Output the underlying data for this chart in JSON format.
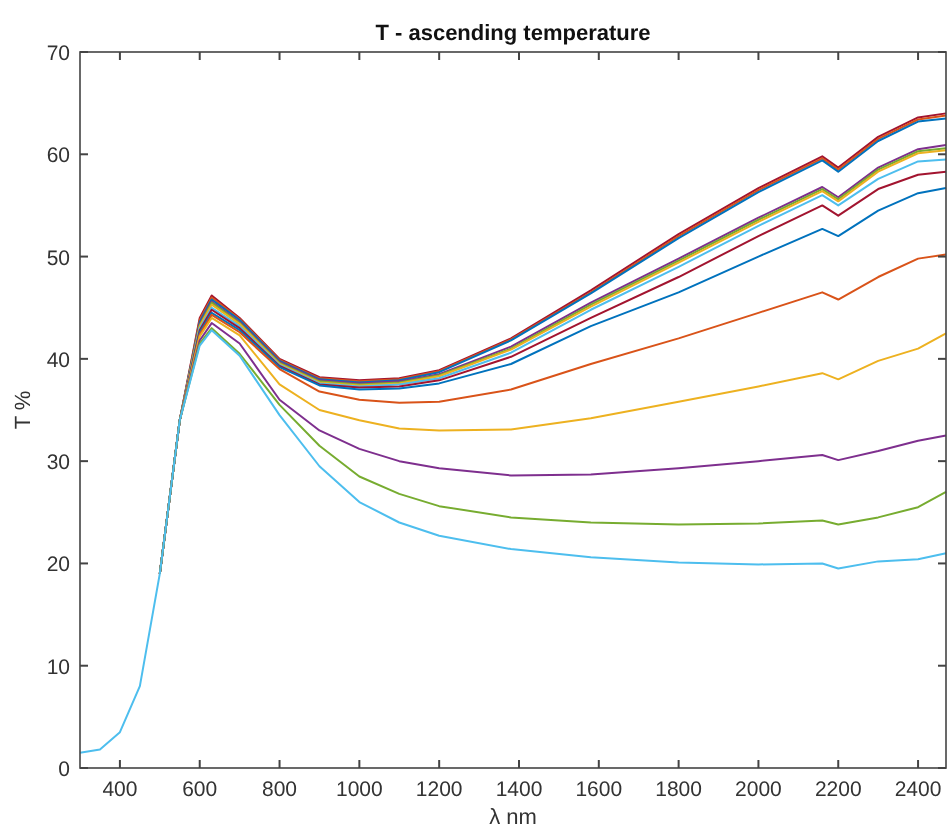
{
  "chart_data": {
    "type": "line",
    "title": "T - ascending temperature",
    "xlabel": "λ nm",
    "ylabel": "T %",
    "x": [
      300,
      350,
      400,
      450,
      500,
      550,
      600,
      630,
      700,
      800,
      900,
      1000,
      1100,
      1200,
      1380,
      1580,
      1800,
      2000,
      2160,
      2200,
      2300,
      2400,
      2470
    ],
    "xlim": [
      300,
      2470
    ],
    "xticks": [
      400,
      600,
      800,
      1000,
      1200,
      1400,
      1600,
      1800,
      2000,
      2200,
      2400
    ],
    "ylim": [
      0,
      70
    ],
    "yticks": [
      0,
      10,
      20,
      30,
      40,
      50,
      60,
      70
    ],
    "grid": false,
    "marker": "none",
    "line_style": "solid",
    "series": [
      {
        "color": "#a2142f",
        "values": [
          null,
          null,
          null,
          null,
          19,
          34,
          44,
          46.2,
          44,
          40,
          38.2,
          37.9,
          38.1,
          38.9,
          42,
          46.7,
          52.2,
          56.7,
          59.8,
          58.7,
          61.7,
          63.6,
          64.0
        ]
      },
      {
        "color": "#d95319",
        "values": [
          null,
          null,
          null,
          null,
          19,
          34,
          43.8,
          46,
          43.9,
          39.9,
          38.1,
          37.8,
          38,
          38.8,
          41.9,
          46.5,
          52,
          56.5,
          59.6,
          58.5,
          61.5,
          63.4,
          63.8
        ]
      },
      {
        "color": "#0072bd",
        "values": [
          null,
          null,
          null,
          null,
          19,
          34,
          43.6,
          45.8,
          43.8,
          39.8,
          38,
          37.7,
          37.9,
          38.7,
          41.8,
          46.4,
          51.8,
          56.3,
          59.4,
          58.3,
          61.3,
          63.2,
          63.5
        ]
      },
      {
        "color": "#7e2f8e",
        "values": [
          null,
          null,
          null,
          null,
          19,
          34,
          43.4,
          45.6,
          43.6,
          39.7,
          37.9,
          37.6,
          37.8,
          38.5,
          41.2,
          45.5,
          49.8,
          53.8,
          56.8,
          55.8,
          58.7,
          60.5,
          60.9
        ]
      },
      {
        "color": "#77ac30",
        "values": [
          null,
          null,
          null,
          null,
          19,
          34,
          43.3,
          45.5,
          43.5,
          39.6,
          37.8,
          37.5,
          37.7,
          38.4,
          41,
          45.3,
          49.6,
          53.6,
          56.6,
          55.6,
          58.5,
          60.3,
          60.6
        ]
      },
      {
        "color": "#edb120",
        "values": [
          null,
          null,
          null,
          null,
          19,
          34,
          43.2,
          45.3,
          43.4,
          39.5,
          37.7,
          37.4,
          37.6,
          38.3,
          40.9,
          45.1,
          49.4,
          53.4,
          56.4,
          55.4,
          58.3,
          60.1,
          60.4
        ]
      },
      {
        "color": "#4dbeee",
        "values": [
          null,
          null,
          null,
          null,
          19,
          34,
          43,
          45,
          43.2,
          39.4,
          37.6,
          37.3,
          37.5,
          38.1,
          40.6,
          44.8,
          49,
          53,
          56,
          55,
          57.6,
          59.3,
          59.5
        ]
      },
      {
        "color": "#a2142f",
        "values": [
          null,
          null,
          null,
          null,
          19,
          34,
          42.8,
          44.8,
          43,
          39.3,
          37.5,
          37.2,
          37.3,
          37.9,
          40.2,
          44,
          48,
          52,
          55,
          54,
          56.6,
          58,
          58.3
        ]
      },
      {
        "color": "#0072bd",
        "values": [
          null,
          null,
          null,
          null,
          19,
          34,
          42.6,
          44.5,
          42.8,
          39.2,
          37.4,
          37,
          37.1,
          37.6,
          39.5,
          43.2,
          46.5,
          50,
          52.7,
          52,
          54.5,
          56.2,
          56.7
        ]
      },
      {
        "color": "#d95319",
        "values": [
          null,
          null,
          null,
          null,
          19,
          34,
          42.4,
          44.3,
          42.6,
          39,
          36.8,
          36,
          35.7,
          35.8,
          37,
          39.5,
          42,
          44.5,
          46.5,
          45.8,
          48,
          49.8,
          50.2
        ]
      },
      {
        "color": "#edb120",
        "values": [
          null,
          null,
          null,
          null,
          19,
          34,
          42.2,
          44,
          42.3,
          37.5,
          35,
          34,
          33.2,
          33,
          33.1,
          34.2,
          35.8,
          37.3,
          38.6,
          38,
          39.8,
          41,
          42.5
        ]
      },
      {
        "color": "#7e2f8e",
        "values": [
          null,
          null,
          null,
          null,
          19,
          34,
          41.8,
          43.5,
          41.5,
          36,
          33,
          31.2,
          30,
          29.3,
          28.6,
          28.7,
          29.3,
          30,
          30.6,
          30.1,
          31,
          32,
          32.5
        ]
      },
      {
        "color": "#77ac30",
        "values": [
          null,
          null,
          null,
          null,
          19,
          34,
          41.5,
          43,
          40.5,
          35.5,
          31.5,
          28.5,
          26.8,
          25.6,
          24.5,
          24,
          23.8,
          23.9,
          24.2,
          23.8,
          24.5,
          25.5,
          27
        ]
      },
      {
        "color": "#4dbeee",
        "values": [
          1.5,
          1.8,
          3.5,
          8,
          19,
          34,
          41.3,
          42.8,
          40.3,
          34.5,
          29.5,
          26,
          24,
          22.7,
          21.4,
          20.6,
          20.1,
          19.9,
          20,
          19.5,
          20.2,
          20.4,
          21
        ]
      }
    ]
  }
}
